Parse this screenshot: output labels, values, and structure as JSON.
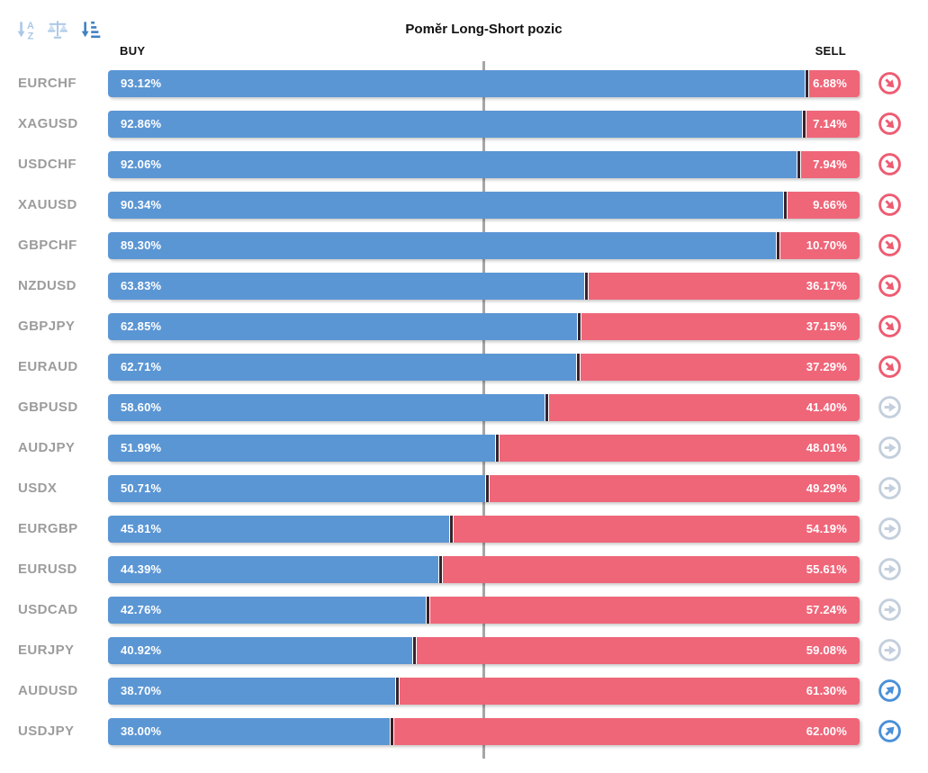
{
  "title": "Poměr Long-Short pozic",
  "columns": {
    "buy": "BUY",
    "sell": "SELL"
  },
  "toolbar": {
    "sort_alpha_icon": "sort-alphabetical",
    "balance_icon": "balance-scale",
    "sort_amount_icon": "sort-by-amount",
    "active": "sort-by-amount"
  },
  "colors": {
    "buy_bar": "#5b96d4",
    "sell_bar": "#ef6679",
    "bar_divider": "#38222b",
    "center_line": "#a6a6a6",
    "pair_label": "#9c9c9c",
    "trend_down": "#ee5c72",
    "trend_neutral": "#c4cfdd",
    "trend_up": "#4a90d9",
    "toolbar_inactive": "#aac7e6",
    "toolbar_active": "#4081c2"
  },
  "rows": [
    {
      "pair": "EURCHF",
      "buy": 93.12,
      "sell": 6.88,
      "buy_label": "93.12%",
      "sell_label": "6.88%",
      "trend": "down"
    },
    {
      "pair": "XAGUSD",
      "buy": 92.86,
      "sell": 7.14,
      "buy_label": "92.86%",
      "sell_label": "7.14%",
      "trend": "down"
    },
    {
      "pair": "USDCHF",
      "buy": 92.06,
      "sell": 7.94,
      "buy_label": "92.06%",
      "sell_label": "7.94%",
      "trend": "down"
    },
    {
      "pair": "XAUUSD",
      "buy": 90.34,
      "sell": 9.66,
      "buy_label": "90.34%",
      "sell_label": "9.66%",
      "trend": "down"
    },
    {
      "pair": "GBPCHF",
      "buy": 89.3,
      "sell": 10.7,
      "buy_label": "89.30%",
      "sell_label": "10.70%",
      "trend": "down"
    },
    {
      "pair": "NZDUSD",
      "buy": 63.83,
      "sell": 36.17,
      "buy_label": "63.83%",
      "sell_label": "36.17%",
      "trend": "down"
    },
    {
      "pair": "GBPJPY",
      "buy": 62.85,
      "sell": 37.15,
      "buy_label": "62.85%",
      "sell_label": "37.15%",
      "trend": "down"
    },
    {
      "pair": "EURAUD",
      "buy": 62.71,
      "sell": 37.29,
      "buy_label": "62.71%",
      "sell_label": "37.29%",
      "trend": "down"
    },
    {
      "pair": "GBPUSD",
      "buy": 58.6,
      "sell": 41.4,
      "buy_label": "58.60%",
      "sell_label": "41.40%",
      "trend": "neutral"
    },
    {
      "pair": "AUDJPY",
      "buy": 51.99,
      "sell": 48.01,
      "buy_label": "51.99%",
      "sell_label": "48.01%",
      "trend": "neutral"
    },
    {
      "pair": "USDX",
      "buy": 50.71,
      "sell": 49.29,
      "buy_label": "50.71%",
      "sell_label": "49.29%",
      "trend": "neutral"
    },
    {
      "pair": "EURGBP",
      "buy": 45.81,
      "sell": 54.19,
      "buy_label": "45.81%",
      "sell_label": "54.19%",
      "trend": "neutral"
    },
    {
      "pair": "EURUSD",
      "buy": 44.39,
      "sell": 55.61,
      "buy_label": "44.39%",
      "sell_label": "55.61%",
      "trend": "neutral"
    },
    {
      "pair": "USDCAD",
      "buy": 42.76,
      "sell": 57.24,
      "buy_label": "42.76%",
      "sell_label": "57.24%",
      "trend": "neutral"
    },
    {
      "pair": "EURJPY",
      "buy": 40.92,
      "sell": 59.08,
      "buy_label": "40.92%",
      "sell_label": "59.08%",
      "trend": "neutral"
    },
    {
      "pair": "AUDUSD",
      "buy": 38.7,
      "sell": 61.3,
      "buy_label": "38.70%",
      "sell_label": "61.30%",
      "trend": "up"
    },
    {
      "pair": "USDJPY",
      "buy": 38.0,
      "sell": 62.0,
      "buy_label": "38.00%",
      "sell_label": "62.00%",
      "trend": "up"
    }
  ],
  "chart_data": {
    "type": "bar",
    "orientation": "horizontal",
    "stacked": true,
    "title": "Poměr Long-Short pozic",
    "categories": [
      "EURCHF",
      "XAGUSD",
      "USDCHF",
      "XAUUSD",
      "GBPCHF",
      "NZDUSD",
      "GBPJPY",
      "EURAUD",
      "GBPUSD",
      "AUDJPY",
      "USDX",
      "EURGBP",
      "EURUSD",
      "USDCAD",
      "EURJPY",
      "AUDUSD",
      "USDJPY"
    ],
    "series": [
      {
        "name": "BUY",
        "color": "#5b96d4",
        "values": [
          93.12,
          92.86,
          92.06,
          90.34,
          89.3,
          63.83,
          62.85,
          62.71,
          58.6,
          51.99,
          50.71,
          45.81,
          44.39,
          42.76,
          40.92,
          38.7,
          38.0
        ]
      },
      {
        "name": "SELL",
        "color": "#ef6679",
        "values": [
          6.88,
          7.14,
          7.94,
          9.66,
          10.7,
          36.17,
          37.15,
          37.29,
          41.4,
          48.01,
          49.29,
          54.19,
          55.61,
          57.24,
          59.08,
          61.3,
          62.0
        ]
      }
    ],
    "xlim": [
      0,
      100
    ],
    "value_suffix": "%",
    "reference_line_at": 50,
    "legend": "none",
    "trend_indicators": [
      "down",
      "down",
      "down",
      "down",
      "down",
      "down",
      "down",
      "down",
      "neutral",
      "neutral",
      "neutral",
      "neutral",
      "neutral",
      "neutral",
      "neutral",
      "up",
      "up"
    ]
  }
}
